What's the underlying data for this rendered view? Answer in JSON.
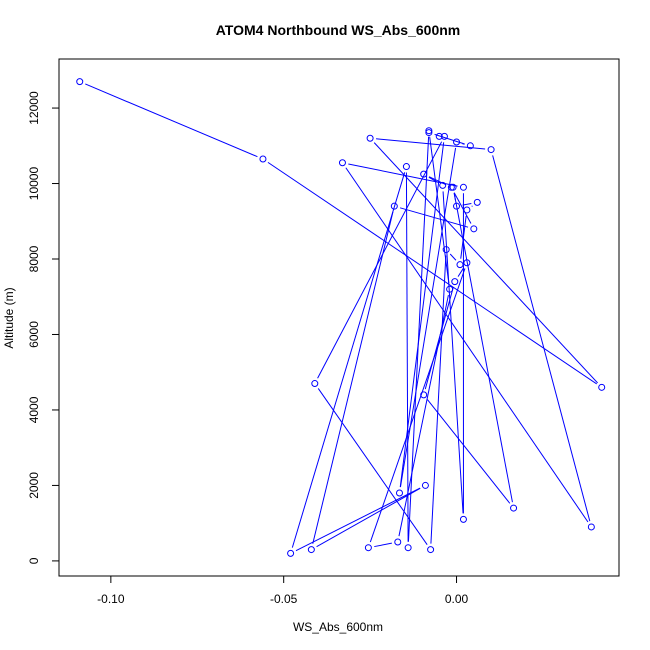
{
  "chart_data": {
    "type": "scatter",
    "title": "ATOM4 Northbound WS_Abs_600nm",
    "xlabel": "WS_Abs_600nm",
    "ylabel": "Altitude (m)",
    "xlim": [
      -0.115,
      0.047
    ],
    "ylim": [
      -400,
      13300
    ],
    "x_ticks": [
      -0.1,
      -0.05,
      0.0
    ],
    "x_tick_labels": [
      "-0.10",
      "-0.05",
      "0.00"
    ],
    "y_ticks": [
      0,
      2000,
      4000,
      6000,
      8000,
      10000,
      12000
    ],
    "y_tick_labels": [
      "0",
      "2000",
      "4000",
      "6000",
      "8000",
      "10000",
      "12000"
    ],
    "grid": false,
    "series": [
      {
        "style": "points-and-lines",
        "color": "#0000ff",
        "x": [
          -0.109,
          -0.056,
          0.042,
          -0.025,
          0.01,
          0.039,
          -0.033,
          0.002,
          0.002,
          -0.004,
          -0.0095,
          -0.0015,
          0.005,
          -0.018,
          -0.042,
          -0.009,
          -0.048,
          -0.0145,
          -0.014,
          -0.008,
          -0.002,
          -0.017,
          -0.0255,
          0.003,
          -0.0005,
          -0.0095,
          0.0165,
          -0.001,
          0.0,
          0.006,
          0.003,
          0.001,
          -0.003,
          -0.0075,
          -0.041,
          -0.0035,
          -0.0165,
          0.0,
          0.004,
          -0.008,
          -0.005
        ],
        "y": [
          12700,
          10650,
          4600,
          11200,
          10900,
          900,
          10550,
          9900,
          1100,
          9950,
          10250,
          9900,
          8800,
          9400,
          300,
          2000,
          200,
          10450,
          350,
          11400,
          7200,
          500,
          350,
          7900,
          7400,
          4400,
          1400,
          9900,
          9400,
          9500,
          9300,
          7850,
          8250,
          300,
          4700,
          11250,
          1800,
          11100,
          11000,
          11350,
          11250
        ]
      }
    ]
  }
}
